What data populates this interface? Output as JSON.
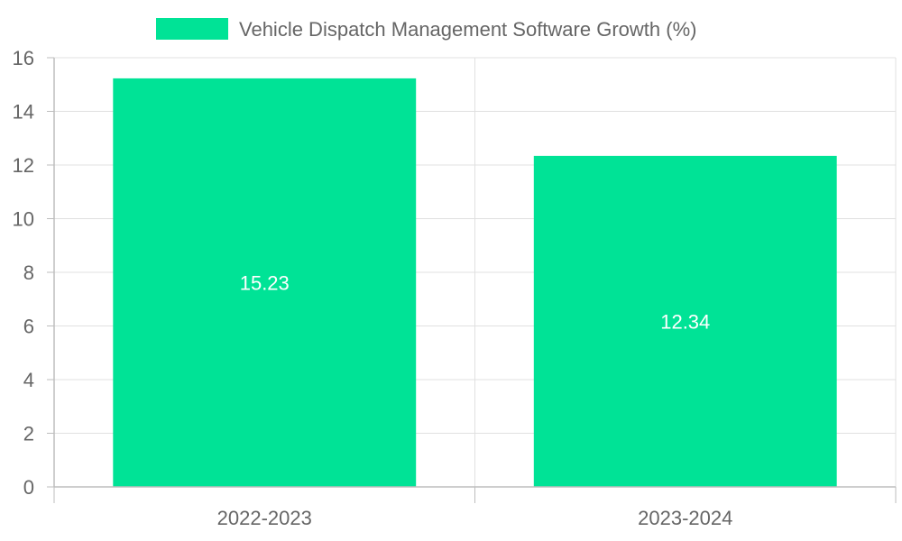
{
  "chart_data": {
    "type": "bar",
    "title": "",
    "categories": [
      "2022-2023",
      "2023-2024"
    ],
    "series": [
      {
        "name": "Vehicle Dispatch Management Software Growth (%)",
        "values": [
          15.23,
          12.34
        ],
        "color": "#00e396"
      }
    ],
    "data_labels": [
      "15.23",
      "12.34"
    ],
    "xlabel": "",
    "ylabel": "",
    "ylim": [
      0,
      16
    ],
    "y_ticks": [
      "0",
      "2",
      "4",
      "6",
      "8",
      "10",
      "12",
      "14",
      "16"
    ],
    "y_tick_values": [
      0,
      2,
      4,
      6,
      8,
      10,
      12,
      14,
      16
    ],
    "grid": true,
    "legend_position": "top-center"
  },
  "colors": {
    "bar": "#00e396",
    "grid": "#e0e0e0",
    "axis": "#bdbdbd",
    "text": "#666666",
    "data_label": "#ffffff"
  }
}
